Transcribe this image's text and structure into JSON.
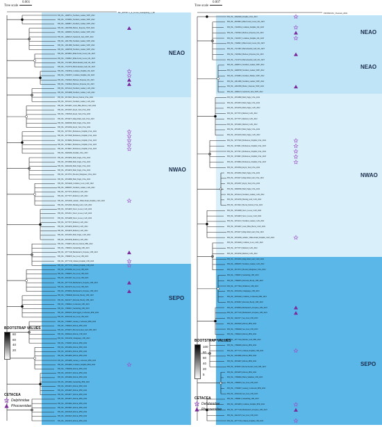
{
  "colors": {
    "neao": "#bfe4f7",
    "nwao": "#d9f0fb",
    "sepo": "#5ab7e8",
    "branch": "#1a1a1a",
    "delphinidae": "#9b4fc7",
    "phocoenidae": "#7a2a9a"
  },
  "left": {
    "scale_label": "Tree scale",
    "scale_value": "0.001",
    "reference": "NC_007357.1_A_Goose_Guangdong_1_96",
    "clades": [
      "NEAO",
      "NWAO",
      "SEPO"
    ],
    "tips": [
      "EPI_ISL_14998741_Northern_Gannet_SWE_2022",
      "EPI_ISL_15330881_Northern_Gannet_SWE_2022",
      "EPI_ISL_14998871_Northern_Gannet_SWE_2022",
      "EPI_ISL_14810369_Harbor_Porpoise_SWE_2022",
      "EPI_ISL_14998481_Northern_Gannet_SWE_2022",
      "EPI_ISL_14966123_Sandwich_Tern_SWE_2022",
      "EPI_ISL_14811786_Northern_Gannet_SWE_2022",
      "EPI_ISL_14811896_Northern_Gannet_SWE_2022",
      "EPI_ISL_14998708_Northern_Gannet_SWE_2022",
      "EPI_ISL_18258601_Pink-footed_Goose_UK_2023",
      "EPI_ISL_17468921_Pink-footed_Goose_UK_2023",
      "EPI_ISL_17221667_Black-headed_Gull_UK_2023",
      "EPI_ISL_17224733_Black-headed_Gull_UK_2023",
      "EPI_ISL_17463034_Common_Dolphin_UK_2023",
      "EPI_ISL_17465037_Common_Dolphin_UK_2023",
      "EPI_ISL_17465922_Harbour_Porpoise_UK_2023",
      "EPI_ISL_17465842_Harbour_Porpoise_UK_2023",
      "EPI_ISL_19354124_Northern_Gannet_CAN_2022",
      "EPI_ISL_19354088_Northern_Gannet_CAN_2022",
      "EPI_ISL_18133410_Brown_Pelican_USA_2022",
      "EPI_ISL_19354110_Northern_Gannet_CAN_2022",
      "EPI_ISL_19354467_Great_Blue_Heron_CAN_2022",
      "EPI_ISL_18332397_Royal_Tern_USA_2022",
      "EPI_ISL_17983529_Royal_Tern_USA_2023",
      "EPI_ISL_18332473_Ring-billed_Gull_USA_2022",
      "EPI_ISL_19606596_Bald_Eagle_USA_2022",
      "EPI_ISL_18332384_Royal_Tern_USA_2022",
      "EPI_ISL_19737015_Bottlenose_Dolphin_USA_2024",
      "EPI_ISL_19737026_Bottlenose_Dolphin_USA_2024",
      "EPI_ISL_19749962_Bottlenose_Dolphin_USA_2023",
      "EPI_ISL_19749912_Bottlenose_Dolphin_USA_2023",
      "EPI_ISL_19749915_Bottlenose_Dolphin_USA_2023",
      "EPI_ISL_19820469_Dolphin_USA_2023",
      "EPI_ISL_18332950_Bald_Eagle_USA_2022",
      "EPI_ISL_18332896_Bald_Eagle_USA_2022",
      "EPI_ISL_19604169_Bald_Eagle_USA_2022",
      "EPI_ISL_18332933_Bald_Eagle_USA_2022",
      "EPI_ISL_18133701_Hooded_Merganser_USA_2022",
      "EPI_ISL_18332869_Bald_Eagle_USA_2022",
      "EPI_ISL_19354449_Common_Loon_CAN_2022",
      "EPI_ISL_18869597_Northern_Gannet_CAN_2022",
      "EPI_ISL_19775374_Mallard_CAN_2022",
      "EPI_ISL_19775375_Mallard_CAN_2022",
      "EPI_ISL_19354509_Atlantic_White-Sided_Dolphin_CAN_2022",
      "EPI_ISL_19354592_Herring_Gull_CAN_2022",
      "EPI_ISL_19354603_Snow_Goose_CAN_2022",
      "EPI_ISL_19354512_Snow_Goose_CAN_2022",
      "EPI_ISL_19354488_Snow_Goose_CAN_2022",
      "EPI_ISL_19775373_Mallard_CAN_2022",
      "EPI_ISL_19354459_Mallard_CAN_2022",
      "EPI_ISL_19354478_Mallard_CAN_2022",
      "EPI_ISL_19354563_Bald_Eagle_CAN_2022",
      "EPI_ISL_19354536_Mallard_CAN_2022",
      "EPI_ISL_17566974_Brown_Pelican_PER_2022",
      "EPI_ISL_17869319_Sanderling_CHI_2023",
      "EPI_ISL_18777148_Burmeister's_Porpoise_CHI_2023",
      "EPI_ISL_17869976_Sea_Lion_CHI_2023",
      "EPI_ISL_18777138_Chilean_Dolphin_CHI_2023",
      "EPI_ISL_18777170_Chilean_Dolphin_CHI_2023",
      "EPI_ISL_18760069_Sea_Lion_CHI_2023",
      "EPI_ISL_17869955_Sea_Lion_CHI_2023",
      "EPI_ISL_19391467_Sea_Lion_CHI_2023",
      "EPI_ISL_18777129_Burmeister's_Porpoise_CHI_2023",
      "EPI_ISL_19410279_Sea_Lion_CHI_2023",
      "EPI_ISL_18768004_Burmeister's_Porpoise_CHI_2023",
      "EPI_ISL_17869948_Peruvian_Booby_CHI_2023",
      "EPI_ISL_19410277_Peruvian_Booby_CHI_2023",
      "EPI_ISL_17869941_Cormorant_CHI_2023",
      "EPI_ISL_17869913_Sanderling_CHI_2023",
      "EPI_ISL_18600418_Red-legged_Cormorant_PER_2022",
      "EPI_ISL_19362148_Sea_Lion_CHI_2023",
      "EPI_ISL_17566607_Guanay_Cormorant_PER_2022",
      "EPI_ISL_17869443_Pelican_PER_2022",
      "EPI_ISL_18760072_Brown-hooded_Gull_CHI_2023",
      "EPI_ISL_18600424_Pelican_CHI_2023",
      "EPI_ISL_19391439_Chungungo_CHI_2023",
      "EPI_ISL_17560067_Pelican_PER_2022",
      "EPI_ISL_18054984_Pelican_PER_2022",
      "EPI_ISL_18054952_Pelican_PER_2022",
      "EPI_ISL_18054963_Pelican_PER_2022",
      "EPI_ISL_18054980_Guanay_Cormorant_PER_2022",
      "EPI_ISL_18054983_Common_Dolphin_PER_2022",
      "EPI_ISL_17866009_Pelican_PER_2022",
      "EPI_ISL_18263437_Pelican_PER_2022",
      "EPI_ISL_18054960_Pelican_PER_2022",
      "EPI_ISL_18054962_Sanderling_PER_2022",
      "EPI_ISL_18054972_Pelican_PER_2022",
      "EPI_ISL_18054997_Pelican_PER_2022",
      "EPI_ISL_18054977_Pelican_PER_2022",
      "EPI_ISL_18054975_Pelican_PER_2022",
      "EPI_ISL_18054962_Pelican_PER_2022",
      "EPI_ISL_18054987_Pelican_PER_2022",
      "EPI_ISL_18263428_Pelican_PER_2022",
      "EPI_ISL_18263418_Pelican_PER_2022",
      "EPI_ISL_18263433_Pelican_PER_2022"
    ],
    "markers": [
      {
        "tip": 3,
        "type": "phocoenidae"
      },
      {
        "tip": 13,
        "type": "delphinidae"
      },
      {
        "tip": 14,
        "type": "delphinidae"
      },
      {
        "tip": 15,
        "type": "phocoenidae"
      },
      {
        "tip": 16,
        "type": "phocoenidae"
      },
      {
        "tip": 27,
        "type": "delphinidae"
      },
      {
        "tip": 28,
        "type": "delphinidae"
      },
      {
        "tip": 29,
        "type": "delphinidae"
      },
      {
        "tip": 30,
        "type": "delphinidae"
      },
      {
        "tip": 31,
        "type": "delphinidae"
      },
      {
        "tip": 43,
        "type": "delphinidae"
      },
      {
        "tip": 55,
        "type": "phocoenidae"
      },
      {
        "tip": 57,
        "type": "delphinidae"
      },
      {
        "tip": 58,
        "type": "delphinidae"
      },
      {
        "tip": 62,
        "type": "phocoenidae"
      },
      {
        "tip": 64,
        "type": "phocoenidae"
      },
      {
        "tip": 81,
        "type": "delphinidae"
      }
    ],
    "bootstrap": {
      "title": "BOOTSTRAP VALUES",
      "ticks": [
        "80",
        "60",
        "40",
        "20"
      ]
    },
    "cetacea": {
      "title": "CETACEA",
      "items": [
        "Delphinidae",
        "Phocoenidae"
      ]
    }
  },
  "right": {
    "scale_label": "Tree scale",
    "scale_value": "0.007",
    "reference": "EPI3990181_Vietnam_2004",
    "clades": [
      "NEAO",
      "NWAO",
      "SEPO"
    ],
    "tips": [
      "EPI_ISL_19820469_Dolphin_USA_2023",
      "EPI_ISL_18258601_Pink-footed_Goose_UK_2023",
      "EPI_ISL_17463034_Common_Dolphin_UK_2023",
      "EPI_ISL_17465922_Harbour_Porpoise_UK_2023",
      "EPI_ISL_17465037_Common_Dolphin_UK_2023",
      "EPI_ISL_17468921_Pink-footed_Goose_UK_2023",
      "EPI_ISL_17221667_Black-headed_Gull_UK_2023",
      "EPI_ISL_17465842_Harbour_Porpoise_UK_2023",
      "EPI_ISL_17224733_Black-headed_Gull_UK_2023",
      "EPI_ISL_14998741_Northern_Gannet_SWE_2022",
      "EPI_ISL_14998708_Northern_Gannet_SWE_2022",
      "EPI_ISL_15330881_Northern_Fulmar_SWE_2022",
      "EPI_ISL_14811896_Northern_Gannet_SWE_2022",
      "EPI_ISL_14810369_Harbor_Porpoise_SWE_2022",
      "EPI_ISL_14966123_Sandwich_Tern_SWE_2022",
      "EPI_ISL_18332868_Bald_Eagle_USA_2022",
      "EPI_ISL_18332933_Bald_Eagle_USA_2022",
      "EPI_ISL_19354559_Bald_Eagle_CAN_2022",
      "EPI_ISL_19775374_Mallard_CAN_2022",
      "EPI_ISL_19775375_Mallard_CAN_2022",
      "EPI_ISL_19354465_Mallard_CAN_2022",
      "EPI_ISL_18332953_Bald_Eagle_USA_2022",
      "EPI_ISL_19354528_Bald_Eagle_CAN_2022",
      "EPI_ISL_19737026_Bottlenose_Dolphin_USA_2024",
      "EPI_ISL_19749912_Bottlenose_Dolphin_USA_2023",
      "EPI_ISL_19737015_Bottlenose_Dolphin_USA_2024",
      "EPI_ISL_19749915_Bottlenose_Dolphin_USA_2023",
      "EPI_ISL_19749962_Bottlenose_Dolphin_USA_2023",
      "EPI_ISL_18332384_Royal_Tern_USA_2022",
      "EPI_ISL_18332950_Bald_Eagle_USA_2022",
      "EPI_ISL_18332473_Ring-billed_Gull_USA_2022",
      "EPI_ISL_18332397_Royal_Tern_USA_2022",
      "EPI_ISL_19606596_Bald_Eagle_USA_2022",
      "EPI_ISL_19354124_Northern_Gannet_CAN_2022",
      "EPI_ISL_19354539_Herring_Gull_CAN_2022",
      "EPI_ISL_18133410_Brown_Pelican_USA_2022",
      "EPI_ISL_19354488_Snow_Goose_CAN_2022",
      "EPI_ISL_19354603_Snow_Goose_CAN_2022",
      "EPI_ISL_19354110_Northern_Gannet_CAN_2022",
      "EPI_ISL_19354467_Great_Blue_Heron_CAN_2022",
      "EPI_ISL_18332473_Ring-billed_Gull_USA_2022",
      "EPI_ISL_19354509_Atlantic_White-Sided_Dolphin_CAN_2022",
      "EPI_ISL_19354449_Common_Loon_CAN_2022",
      "EPI_ISL_19775373_Mallard_CAN_2022",
      "EPI_ISL_19354536_Mallard_CAN_2022",
      "EPI_ISL_19354592_Ring-billed_Gull_CAN_2022",
      "EPI_ISL_18869597_Northern_Gannet_CAN_2022",
      "EPI_ISL_18133701_Hooded_Merganser_USA_2022",
      "EPI_ISL_17866974_Sanderling_CHI_2023",
      "EPI_ISL_17869976_Peruvian_Booby_CHI_2023",
      "EPI_ISL_18777064_Whimbrel_CHI_2023",
      "EPI_ISL_19391439_Chungungo_CHI_2023",
      "EPI_ISL_19391440_Common_Cormorant_PER_2023",
      "EPI_ISL_18760067_Peruvian_Booby_CHI_2023",
      "EPI_ISL_18768004_Burmeister's_Porpoise_CHI_2023",
      "EPI_ISL_18777129_Burmeister's_Porpoise_CHI_2023",
      "EPI_ISL_19410277_Sea_Lion_CHI_2023",
      "EPI_ISL_18263428_Pelican_PER_2022",
      "EPI_ISL_17869948_Sea_Lion_CHI_2023",
      "EPI_ISL_17869443_Pelican_PER_2022",
      "EPI_ISL_18777164_Belcher_Gull_PER_2022",
      "EPI_ISL_17866009_Pelican_PER_2022",
      "EPI_ISL_18777170_Chilean_Dolphin_CHI_2023",
      "EPI_ISL_18054980_Pelican_PER_2022",
      "EPI_ISL_18054997_Pelican_PER_2022",
      "EPI_ISL_18760072_Brown-hooded_Gull_CHI_2023",
      "EPI_ISL_18054978_Pelican_PER_2022",
      "EPI_ISL_17869849_Black_Skimmer_CHI_2023",
      "EPI_ISL_17869976_Sea_Lion_CHI_2023",
      "EPI_ISL_17566607_Guanay_Cormorant_PER_2022",
      "EPI_ISL_19362148_Sea_Lion_CHI_2023",
      "EPI_ISL_17869913_Sanderling_CHI_2023",
      "EPI_ISL_18054983_Common_Dolphin_PER_2022",
      "EPI_ISL_18777148_Burmeister's_Porpoise_CHI_2023",
      "EPI_ISL_19410279_Sea_Lion_CHI_2023",
      "EPI_ISL_18777138_Chilean_Dolphin_CHI_2023"
    ],
    "markers": [
      {
        "tip": 0,
        "type": "delphinidae"
      },
      {
        "tip": 2,
        "type": "delphinidae"
      },
      {
        "tip": 3,
        "type": "phocoenidae"
      },
      {
        "tip": 4,
        "type": "delphinidae"
      },
      {
        "tip": 7,
        "type": "phocoenidae"
      },
      {
        "tip": 13,
        "type": "phocoenidae"
      },
      {
        "tip": 23,
        "type": "delphinidae"
      },
      {
        "tip": 24,
        "type": "delphinidae"
      },
      {
        "tip": 25,
        "type": "delphinidae"
      },
      {
        "tip": 26,
        "type": "delphinidae"
      },
      {
        "tip": 27,
        "type": "delphinidae"
      },
      {
        "tip": 41,
        "type": "delphinidae"
      },
      {
        "tip": 54,
        "type": "phocoenidae"
      },
      {
        "tip": 55,
        "type": "phocoenidae"
      },
      {
        "tip": 62,
        "type": "delphinidae"
      },
      {
        "tip": 72,
        "type": "delphinidae"
      },
      {
        "tip": 73,
        "type": "phocoenidae"
      },
      {
        "tip": 75,
        "type": "delphinidae"
      }
    ],
    "bootstrap": {
      "title": "BOOTSTRAP VALUES",
      "ticks": [
        "100",
        "80",
        "60",
        "40",
        "20",
        "5"
      ]
    },
    "cetacea": {
      "title": "CETACEA",
      "items": [
        "Delphinidae",
        "Phocoenidae"
      ]
    }
  }
}
